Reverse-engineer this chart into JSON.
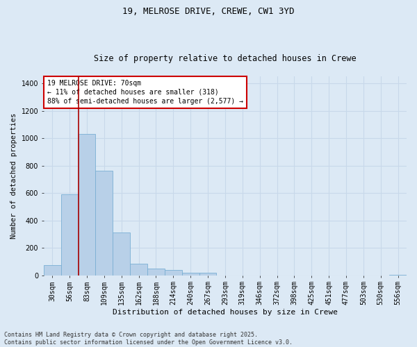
{
  "title_line1": "19, MELROSE DRIVE, CREWE, CW1 3YD",
  "title_line2": "Size of property relative to detached houses in Crewe",
  "xlabel": "Distribution of detached houses by size in Crewe",
  "ylabel": "Number of detached properties",
  "categories": [
    "30sqm",
    "56sqm",
    "83sqm",
    "109sqm",
    "135sqm",
    "162sqm",
    "188sqm",
    "214sqm",
    "240sqm",
    "267sqm",
    "293sqm",
    "319sqm",
    "346sqm",
    "372sqm",
    "398sqm",
    "425sqm",
    "451sqm",
    "477sqm",
    "503sqm",
    "530sqm",
    "556sqm"
  ],
  "values": [
    75,
    590,
    1030,
    760,
    310,
    85,
    50,
    40,
    20,
    20,
    0,
    0,
    0,
    0,
    0,
    0,
    0,
    0,
    0,
    0,
    5
  ],
  "bar_color": "#b8d0e8",
  "bar_edge_color": "#7aafd4",
  "vline_x": 1.5,
  "vline_color": "#aa0000",
  "annotation_box_text": "19 MELROSE DRIVE: 70sqm\n← 11% of detached houses are smaller (318)\n88% of semi-detached houses are larger (2,577) →",
  "annotation_box_color": "#cc0000",
  "annotation_text_color": "black",
  "ylim": [
    0,
    1450
  ],
  "yticks": [
    0,
    200,
    400,
    600,
    800,
    1000,
    1200,
    1400
  ],
  "background_color": "#dce9f5",
  "plot_bg_color": "#dce9f5",
  "footer_line1": "Contains HM Land Registry data © Crown copyright and database right 2025.",
  "footer_line2": "Contains public sector information licensed under the Open Government Licence v3.0.",
  "grid_color": "#c8d8ea",
  "title1_fontsize": 9,
  "title2_fontsize": 8.5,
  "xlabel_fontsize": 8,
  "ylabel_fontsize": 7.5,
  "tick_fontsize": 7,
  "annot_fontsize": 7,
  "footer_fontsize": 6
}
